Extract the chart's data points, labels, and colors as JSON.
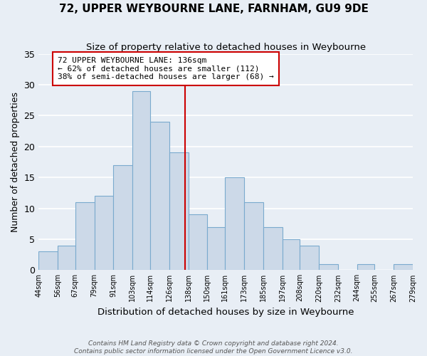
{
  "title": "72, UPPER WEYBOURNE LANE, FARNHAM, GU9 9DE",
  "subtitle": "Size of property relative to detached houses in Weybourne",
  "xlabel": "Distribution of detached houses by size in Weybourne",
  "ylabel": "Number of detached properties",
  "bin_edges": [
    44,
    56,
    67,
    79,
    91,
    103,
    114,
    126,
    138,
    150,
    161,
    173,
    185,
    197,
    208,
    220,
    232,
    244,
    255,
    267,
    279
  ],
  "bin_labels": [
    "44sqm",
    "56sqm",
    "67sqm",
    "79sqm",
    "91sqm",
    "103sqm",
    "114sqm",
    "126sqm",
    "138sqm",
    "150sqm",
    "161sqm",
    "173sqm",
    "185sqm",
    "197sqm",
    "208sqm",
    "220sqm",
    "232sqm",
    "244sqm",
    "255sqm",
    "267sqm",
    "279sqm"
  ],
  "bar_values": [
    3,
    4,
    11,
    12,
    17,
    29,
    24,
    19,
    9,
    7,
    15,
    11,
    7,
    5,
    4,
    1,
    0,
    1,
    0,
    1
  ],
  "bar_color": "#ccd9e8",
  "bar_edge_color": "#7aaace",
  "reference_line_x": 136,
  "reference_line_color": "#cc0000",
  "annotation_title": "72 UPPER WEYBOURNE LANE: 136sqm",
  "annotation_line1": "← 62% of detached houses are smaller (112)",
  "annotation_line2": "38% of semi-detached houses are larger (68) →",
  "annotation_box_color": "#ffffff",
  "annotation_border_color": "#cc0000",
  "ylim": [
    0,
    35
  ],
  "yticks": [
    0,
    5,
    10,
    15,
    20,
    25,
    30,
    35
  ],
  "footer1": "Contains HM Land Registry data © Crown copyright and database right 2024.",
  "footer2": "Contains public sector information licensed under the Open Government Licence v3.0.",
  "background_color": "#e8eef5",
  "grid_color": "#ffffff"
}
